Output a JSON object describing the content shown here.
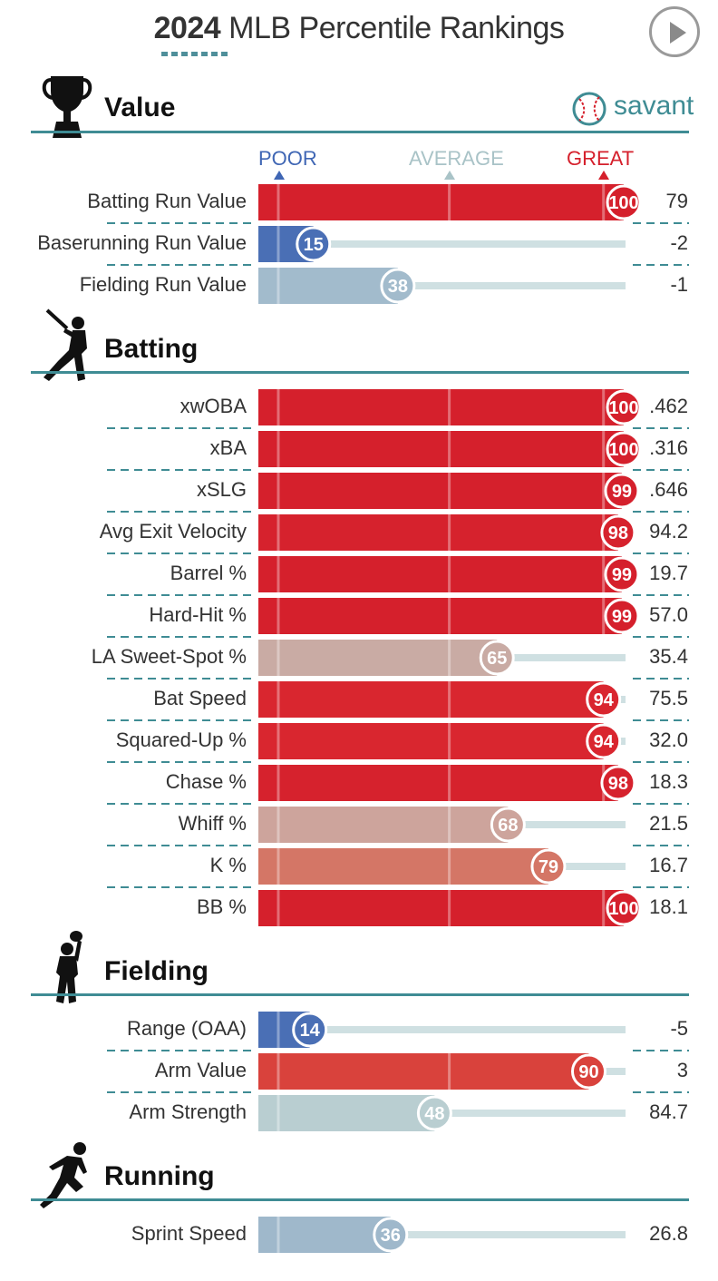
{
  "header": {
    "year": "2024",
    "title_rest": "MLB Percentile Rankings",
    "play_icon": "play-icon"
  },
  "logo": {
    "text": "savant",
    "icon": "baseball-icon"
  },
  "scale": {
    "poor": "POOR",
    "average": "AVERAGE",
    "great": "GREAT"
  },
  "colors": {
    "poor": "#3f66b4",
    "average_dark": "#a7b9c8",
    "average_light": "#cfdfe0",
    "great": "#d5202c",
    "track": "#cfe0e2",
    "accent": "#3f8c94"
  },
  "sections": [
    {
      "title": "Value",
      "icon": "trophy-icon"
    },
    {
      "title": "Batting",
      "icon": "batter-icon"
    },
    {
      "title": "Fielding",
      "icon": "fielder-icon"
    },
    {
      "title": "Running",
      "icon": "runner-icon"
    }
  ],
  "chart_data": {
    "type": "bar",
    "orientation": "horizontal",
    "title": "2024 MLB Percentile Rankings",
    "xlim": [
      0,
      100
    ],
    "groups": [
      {
        "section": "Value",
        "rows": [
          {
            "label": "Batting Run Value",
            "percentile": 100,
            "value": "79",
            "color": "#d5202c"
          },
          {
            "label": "Baserunning Run Value",
            "percentile": 15,
            "value": "-2",
            "color": "#4a6fb5"
          },
          {
            "label": "Fielding Run Value",
            "percentile": 38,
            "value": "-1",
            "color": "#a2bbcc"
          }
        ]
      },
      {
        "section": "Batting",
        "rows": [
          {
            "label": "xwOBA",
            "percentile": 100,
            "value": ".462",
            "color": "#d5202c"
          },
          {
            "label": "xBA",
            "percentile": 100,
            "value": ".316",
            "color": "#d5202c"
          },
          {
            "label": "xSLG",
            "percentile": 99,
            "value": ".646",
            "color": "#d5202c"
          },
          {
            "label": "Avg Exit Velocity",
            "percentile": 98,
            "value": "94.2",
            "color": "#d6222d"
          },
          {
            "label": "Barrel %",
            "percentile": 99,
            "value": "19.7",
            "color": "#d5202c"
          },
          {
            "label": "Hard-Hit %",
            "percentile": 99,
            "value": "57.0",
            "color": "#d5202c"
          },
          {
            "label": "LA Sweet-Spot %",
            "percentile": 65,
            "value": "35.4",
            "color": "#c9aba4"
          },
          {
            "label": "Bat Speed",
            "percentile": 94,
            "value": "75.5",
            "color": "#d9262f"
          },
          {
            "label": "Squared-Up %",
            "percentile": 94,
            "value": "32.0",
            "color": "#d9262f"
          },
          {
            "label": "Chase %",
            "percentile": 98,
            "value": "18.3",
            "color": "#d6222d"
          },
          {
            "label": "Whiff %",
            "percentile": 68,
            "value": "21.5",
            "color": "#cda49c"
          },
          {
            "label": "K %",
            "percentile": 79,
            "value": "16.7",
            "color": "#d47666"
          },
          {
            "label": "BB %",
            "percentile": 100,
            "value": "18.1",
            "color": "#d5202c"
          }
        ]
      },
      {
        "section": "Fielding",
        "rows": [
          {
            "label": "Range (OAA)",
            "percentile": 14,
            "value": "-5",
            "color": "#4a6fb5"
          },
          {
            "label": "Arm Value",
            "percentile": 90,
            "value": "3",
            "color": "#d9423c"
          },
          {
            "label": "Arm Strength",
            "percentile": 48,
            "value": "84.7",
            "color": "#b9ced1"
          }
        ]
      },
      {
        "section": "Running",
        "rows": [
          {
            "label": "Sprint Speed",
            "percentile": 36,
            "value": "26.8",
            "color": "#9fb8cb"
          }
        ]
      }
    ]
  }
}
